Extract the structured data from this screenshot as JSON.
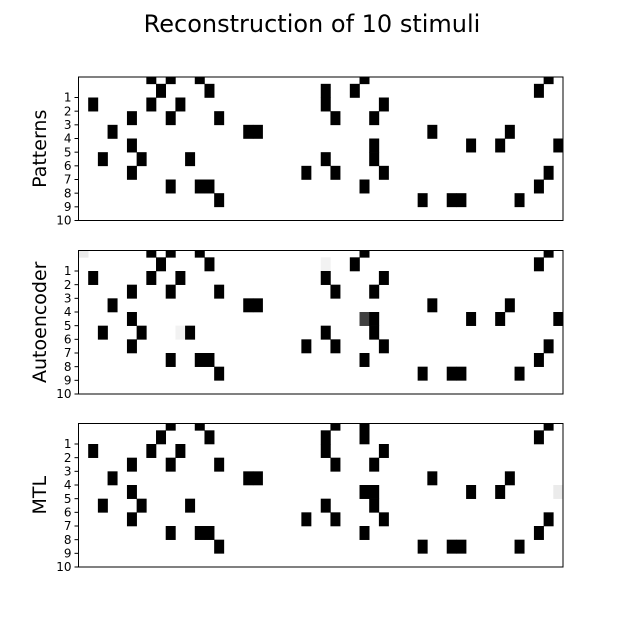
{
  "chart_data": {
    "type": "heatmap",
    "title": "Reconstruction of 10 stimuli",
    "colormap": "gray_r",
    "value_range": [
      0,
      1
    ],
    "n_rows": 10,
    "n_cols": 50,
    "yticklabels": [
      "1",
      "2",
      "3",
      "4",
      "5",
      "6",
      "7",
      "8",
      "9",
      "10"
    ],
    "panels": [
      {
        "ylabel": "Patterns",
        "cells": [
          [
            0,
            7,
            1
          ],
          [
            0,
            9,
            1
          ],
          [
            0,
            12,
            1
          ],
          [
            0,
            29,
            1
          ],
          [
            0,
            48,
            1
          ],
          [
            1,
            8,
            1
          ],
          [
            1,
            13,
            1
          ],
          [
            1,
            25,
            1
          ],
          [
            1,
            28,
            1
          ],
          [
            1,
            47,
            1
          ],
          [
            2,
            1,
            1
          ],
          [
            2,
            7,
            1
          ],
          [
            2,
            10,
            1
          ],
          [
            2,
            25,
            1
          ],
          [
            2,
            31,
            1
          ],
          [
            3,
            5,
            1
          ],
          [
            3,
            9,
            1
          ],
          [
            3,
            14,
            1
          ],
          [
            3,
            26,
            1
          ],
          [
            3,
            30,
            1
          ],
          [
            4,
            3,
            1
          ],
          [
            4,
            17,
            1
          ],
          [
            4,
            18,
            1
          ],
          [
            4,
            36,
            1
          ],
          [
            4,
            44,
            1
          ],
          [
            5,
            5,
            1
          ],
          [
            5,
            30,
            1
          ],
          [
            5,
            40,
            1
          ],
          [
            5,
            43,
            1
          ],
          [
            5,
            49,
            1
          ],
          [
            6,
            2,
            1
          ],
          [
            6,
            6,
            1
          ],
          [
            6,
            11,
            1
          ],
          [
            6,
            25,
            1
          ],
          [
            6,
            30,
            1
          ],
          [
            7,
            5,
            1
          ],
          [
            7,
            23,
            1
          ],
          [
            7,
            26,
            1
          ],
          [
            7,
            31,
            1
          ],
          [
            7,
            48,
            1
          ],
          [
            8,
            9,
            1
          ],
          [
            8,
            12,
            1
          ],
          [
            8,
            13,
            1
          ],
          [
            8,
            29,
            1
          ],
          [
            8,
            47,
            1
          ],
          [
            9,
            14,
            1
          ],
          [
            9,
            35,
            1
          ],
          [
            9,
            38,
            1
          ],
          [
            9,
            39,
            1
          ],
          [
            9,
            45,
            1
          ]
        ]
      },
      {
        "ylabel": "Autoencoder",
        "cells": [
          [
            0,
            0,
            0.08
          ],
          [
            0,
            7,
            1
          ],
          [
            0,
            9,
            1
          ],
          [
            0,
            12,
            1
          ],
          [
            0,
            29,
            1
          ],
          [
            0,
            48,
            1
          ],
          [
            1,
            8,
            1
          ],
          [
            1,
            13,
            1
          ],
          [
            1,
            25,
            0.05
          ],
          [
            1,
            28,
            1
          ],
          [
            1,
            47,
            1
          ],
          [
            2,
            1,
            1
          ],
          [
            2,
            7,
            1
          ],
          [
            2,
            10,
            1
          ],
          [
            2,
            25,
            1
          ],
          [
            2,
            31,
            1
          ],
          [
            3,
            5,
            1
          ],
          [
            3,
            9,
            1
          ],
          [
            3,
            14,
            1
          ],
          [
            3,
            26,
            1
          ],
          [
            3,
            30,
            1
          ],
          [
            4,
            3,
            1
          ],
          [
            4,
            17,
            1
          ],
          [
            4,
            18,
            1
          ],
          [
            4,
            36,
            1
          ],
          [
            4,
            44,
            1
          ],
          [
            5,
            5,
            1
          ],
          [
            5,
            29,
            0.75
          ],
          [
            5,
            30,
            1
          ],
          [
            5,
            40,
            1
          ],
          [
            5,
            43,
            1
          ],
          [
            5,
            49,
            1
          ],
          [
            6,
            2,
            1
          ],
          [
            6,
            6,
            1
          ],
          [
            6,
            10,
            0.05
          ],
          [
            6,
            11,
            1
          ],
          [
            6,
            25,
            1
          ],
          [
            6,
            30,
            1
          ],
          [
            7,
            5,
            1
          ],
          [
            7,
            23,
            1
          ],
          [
            7,
            26,
            1
          ],
          [
            7,
            31,
            1
          ],
          [
            7,
            48,
            1
          ],
          [
            8,
            9,
            1
          ],
          [
            8,
            12,
            1
          ],
          [
            8,
            13,
            1
          ],
          [
            8,
            29,
            1
          ],
          [
            8,
            47,
            1
          ],
          [
            9,
            14,
            1
          ],
          [
            9,
            35,
            1
          ],
          [
            9,
            38,
            1
          ],
          [
            9,
            39,
            1
          ],
          [
            9,
            45,
            1
          ]
        ]
      },
      {
        "ylabel": "MTL",
        "cells": [
          [
            0,
            9,
            1
          ],
          [
            0,
            12,
            1
          ],
          [
            0,
            26,
            1
          ],
          [
            0,
            29,
            1
          ],
          [
            0,
            48,
            1
          ],
          [
            1,
            8,
            1
          ],
          [
            1,
            13,
            1
          ],
          [
            1,
            25,
            1
          ],
          [
            1,
            29,
            1
          ],
          [
            1,
            47,
            1
          ],
          [
            2,
            1,
            1
          ],
          [
            2,
            7,
            1
          ],
          [
            2,
            10,
            1
          ],
          [
            2,
            25,
            1
          ],
          [
            2,
            31,
            1
          ],
          [
            3,
            5,
            1
          ],
          [
            3,
            9,
            1
          ],
          [
            3,
            14,
            1
          ],
          [
            3,
            26,
            1
          ],
          [
            3,
            30,
            1
          ],
          [
            4,
            3,
            1
          ],
          [
            4,
            17,
            1
          ],
          [
            4,
            18,
            1
          ],
          [
            4,
            36,
            1
          ],
          [
            4,
            44,
            1
          ],
          [
            5,
            5,
            1
          ],
          [
            5,
            29,
            1
          ],
          [
            5,
            30,
            1
          ],
          [
            5,
            40,
            1
          ],
          [
            5,
            43,
            1
          ],
          [
            5,
            49,
            0.08
          ],
          [
            6,
            2,
            1
          ],
          [
            6,
            6,
            1
          ],
          [
            6,
            11,
            1
          ],
          [
            6,
            25,
            1
          ],
          [
            6,
            30,
            1
          ],
          [
            7,
            5,
            1
          ],
          [
            7,
            23,
            1
          ],
          [
            7,
            26,
            1
          ],
          [
            7,
            31,
            1
          ],
          [
            7,
            48,
            1
          ],
          [
            8,
            9,
            1
          ],
          [
            8,
            12,
            1
          ],
          [
            8,
            13,
            1
          ],
          [
            8,
            29,
            1
          ],
          [
            8,
            47,
            1
          ],
          [
            9,
            14,
            1
          ],
          [
            9,
            35,
            1
          ],
          [
            9,
            38,
            1
          ],
          [
            9,
            39,
            1
          ],
          [
            9,
            45,
            1
          ]
        ]
      }
    ]
  }
}
